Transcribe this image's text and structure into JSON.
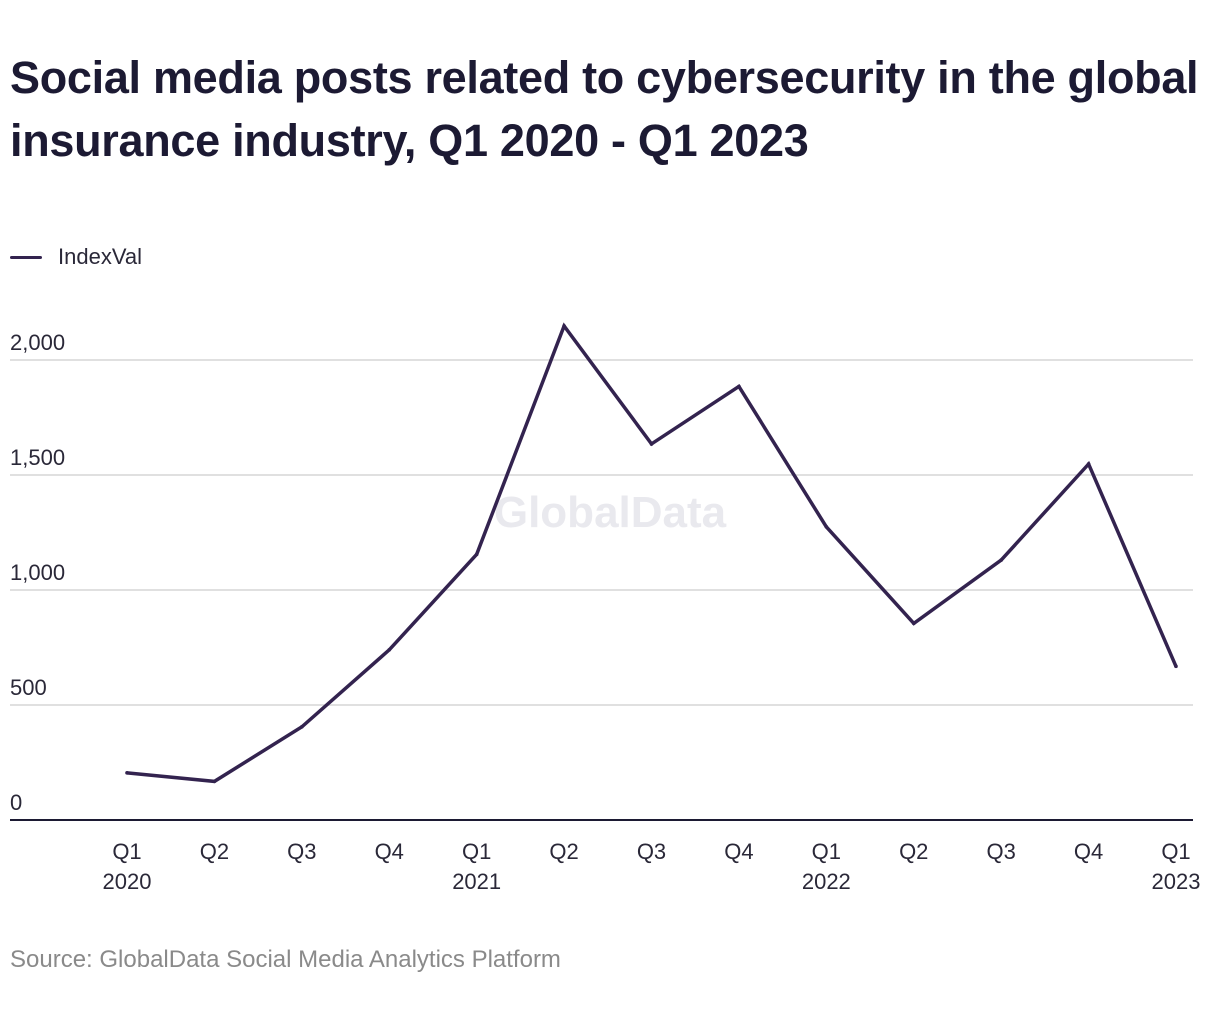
{
  "chart_data": {
    "type": "line",
    "title": "Social media posts related to cybersecurity in the global insurance industry, Q1 2020 - Q1 2023",
    "source": "Source: GlobalData Social Media Analytics Platform",
    "watermark": "GlobalData",
    "legend": {
      "placement": "top-left"
    },
    "categories": [
      {
        "quarter": "Q1",
        "year": "2020"
      },
      {
        "quarter": "Q2",
        "year": ""
      },
      {
        "quarter": "Q3",
        "year": ""
      },
      {
        "quarter": "Q4",
        "year": ""
      },
      {
        "quarter": "Q1",
        "year": "2021"
      },
      {
        "quarter": "Q2",
        "year": ""
      },
      {
        "quarter": "Q3",
        "year": ""
      },
      {
        "quarter": "Q4",
        "year": ""
      },
      {
        "quarter": "Q1",
        "year": "2022"
      },
      {
        "quarter": "Q2",
        "year": ""
      },
      {
        "quarter": "Q3",
        "year": ""
      },
      {
        "quarter": "Q4",
        "year": ""
      },
      {
        "quarter": "Q1",
        "year": "2023"
      }
    ],
    "series": [
      {
        "name": "IndexVal",
        "color": "#33234f",
        "values": [
          205,
          168,
          405,
          740,
          1155,
          2148,
          1635,
          1885,
          1275,
          855,
          1130,
          1548,
          668
        ]
      }
    ],
    "ylim": [
      0,
      2000
    ],
    "yticks": [
      {
        "value": 0,
        "label": "0"
      },
      {
        "value": 500,
        "label": "500"
      },
      {
        "value": 1000,
        "label": "1,000"
      },
      {
        "value": 1500,
        "label": "1,500"
      },
      {
        "value": 2000,
        "label": "2,000"
      }
    ],
    "grid": true,
    "xlabel": "",
    "ylabel": ""
  }
}
